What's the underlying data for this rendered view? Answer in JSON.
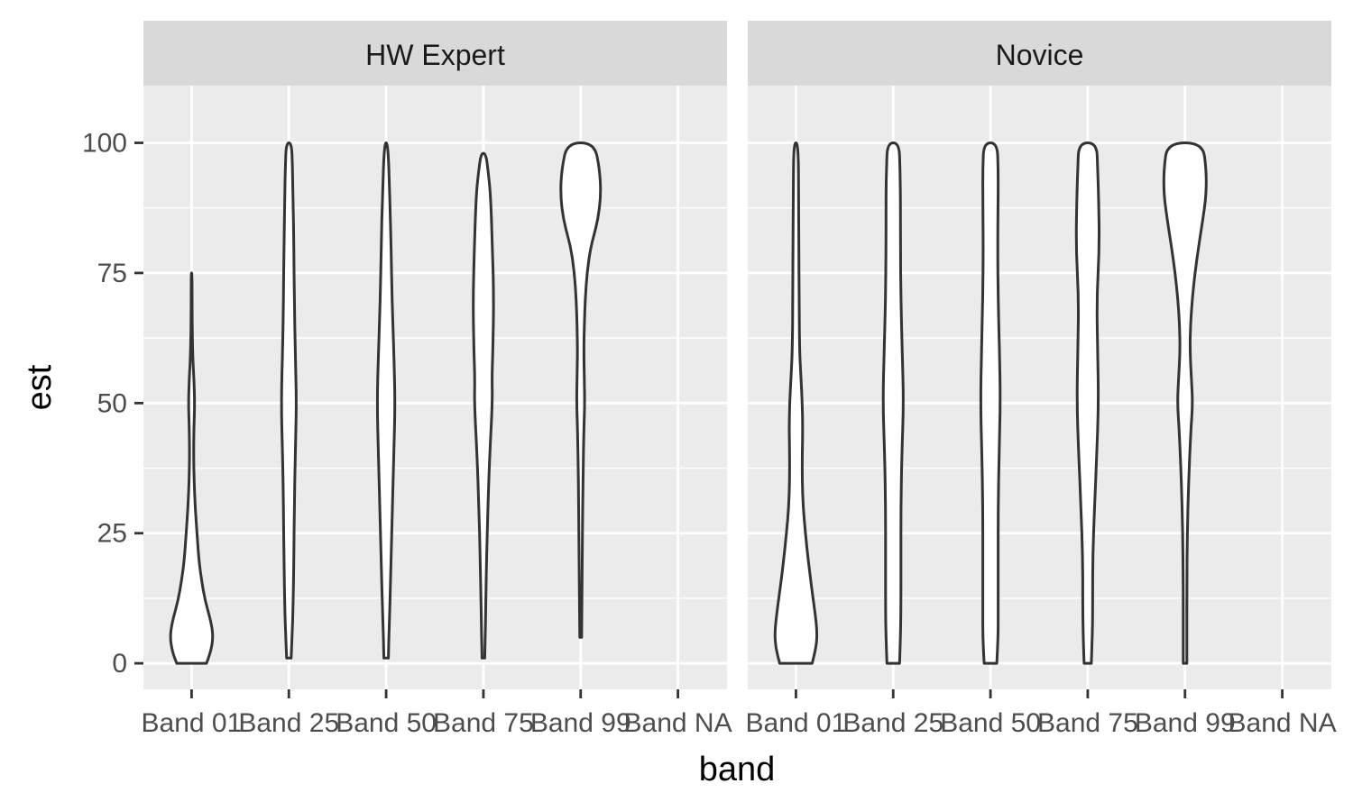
{
  "chart_data": {
    "type": "violin",
    "xlabel": "band",
    "ylabel": "est",
    "categories": [
      "Band 01",
      "Band 25",
      "Band 50",
      "Band 75",
      "Band 99",
      "Band NA"
    ],
    "ylim": [
      -5,
      111
    ],
    "yticks": [
      0,
      25,
      50,
      75,
      100
    ],
    "grid": true,
    "panels": [
      {
        "label": "HW Expert",
        "violins": [
          {
            "category": "Band 01",
            "min": 0,
            "max": 75,
            "profile": [
              [
                0,
                0.33
              ],
              [
                2,
                0.42
              ],
              [
                5,
                0.48
              ],
              [
                8,
                0.43
              ],
              [
                12,
                0.3
              ],
              [
                16,
                0.22
              ],
              [
                20,
                0.16
              ],
              [
                25,
                0.12
              ],
              [
                30,
                0.08
              ],
              [
                35,
                0.055
              ],
              [
                40,
                0.045
              ],
              [
                45,
                0.05
              ],
              [
                50,
                0.07
              ],
              [
                55,
                0.05
              ],
              [
                58,
                0.03
              ],
              [
                62,
                0.018
              ],
              [
                66,
                0.012
              ],
              [
                70,
                0.01
              ],
              [
                75,
                0.008
              ]
            ]
          },
          {
            "category": "Band 25",
            "min": 1,
            "max": 100,
            "profile": [
              [
                1,
                0.05
              ],
              [
                5,
                0.07
              ],
              [
                10,
                0.09
              ],
              [
                20,
                0.11
              ],
              [
                30,
                0.12
              ],
              [
                40,
                0.14
              ],
              [
                50,
                0.17
              ],
              [
                60,
                0.14
              ],
              [
                70,
                0.12
              ],
              [
                80,
                0.11
              ],
              [
                90,
                0.09
              ],
              [
                95,
                0.08
              ],
              [
                100,
                0.06
              ]
            ]
          },
          {
            "category": "Band 50",
            "min": 1,
            "max": 100,
            "profile": [
              [
                1,
                0.05
              ],
              [
                5,
                0.06
              ],
              [
                10,
                0.08
              ],
              [
                20,
                0.11
              ],
              [
                30,
                0.14
              ],
              [
                40,
                0.17
              ],
              [
                50,
                0.2
              ],
              [
                60,
                0.17
              ],
              [
                70,
                0.13
              ],
              [
                80,
                0.11
              ],
              [
                90,
                0.08
              ],
              [
                100,
                0.04
              ]
            ]
          },
          {
            "category": "Band 75",
            "min": 1,
            "max": 98,
            "profile": [
              [
                1,
                0.03
              ],
              [
                5,
                0.04
              ],
              [
                10,
                0.05
              ],
              [
                20,
                0.07
              ],
              [
                30,
                0.1
              ],
              [
                40,
                0.14
              ],
              [
                50,
                0.2
              ],
              [
                55,
                0.19
              ],
              [
                60,
                0.21
              ],
              [
                70,
                0.23
              ],
              [
                80,
                0.2
              ],
              [
                90,
                0.16
              ],
              [
                95,
                0.1
              ],
              [
                98,
                0.05
              ]
            ]
          },
          {
            "category": "Band 99",
            "min": 5,
            "max": 100,
            "profile": [
              [
                5,
                0.02
              ],
              [
                15,
                0.03
              ],
              [
                25,
                0.04
              ],
              [
                35,
                0.05
              ],
              [
                45,
                0.07
              ],
              [
                50,
                0.09
              ],
              [
                55,
                0.08
              ],
              [
                60,
                0.07
              ],
              [
                65,
                0.08
              ],
              [
                70,
                0.1
              ],
              [
                75,
                0.14
              ],
              [
                80,
                0.22
              ],
              [
                85,
                0.38
              ],
              [
                90,
                0.45
              ],
              [
                95,
                0.42
              ],
              [
                100,
                0.3
              ]
            ]
          }
        ]
      },
      {
        "label": "Novice",
        "violins": [
          {
            "category": "Band 01",
            "min": 0,
            "max": 100,
            "profile": [
              [
                0,
                0.36
              ],
              [
                3,
                0.45
              ],
              [
                6,
                0.47
              ],
              [
                10,
                0.42
              ],
              [
                15,
                0.34
              ],
              [
                20,
                0.27
              ],
              [
                25,
                0.21
              ],
              [
                30,
                0.16
              ],
              [
                35,
                0.14
              ],
              [
                40,
                0.14
              ],
              [
                45,
                0.15
              ],
              [
                50,
                0.14
              ],
              [
                55,
                0.11
              ],
              [
                60,
                0.08
              ],
              [
                70,
                0.07
              ],
              [
                80,
                0.065
              ],
              [
                90,
                0.06
              ],
              [
                100,
                0.05
              ]
            ]
          },
          {
            "category": "Band 25",
            "min": 0,
            "max": 100,
            "profile": [
              [
                0,
                0.14
              ],
              [
                5,
                0.16
              ],
              [
                10,
                0.17
              ],
              [
                20,
                0.17
              ],
              [
                30,
                0.17
              ],
              [
                40,
                0.19
              ],
              [
                50,
                0.23
              ],
              [
                60,
                0.2
              ],
              [
                70,
                0.17
              ],
              [
                80,
                0.16
              ],
              [
                90,
                0.16
              ],
              [
                95,
                0.15
              ],
              [
                100,
                0.13
              ]
            ]
          },
          {
            "category": "Band 50",
            "min": 0,
            "max": 100,
            "profile": [
              [
                0,
                0.14
              ],
              [
                5,
                0.17
              ],
              [
                10,
                0.17
              ],
              [
                20,
                0.17
              ],
              [
                30,
                0.17
              ],
              [
                40,
                0.19
              ],
              [
                50,
                0.22
              ],
              [
                60,
                0.2
              ],
              [
                70,
                0.17
              ],
              [
                80,
                0.16
              ],
              [
                90,
                0.17
              ],
              [
                95,
                0.17
              ],
              [
                100,
                0.15
              ]
            ]
          },
          {
            "category": "Band 75",
            "min": 0,
            "max": 100,
            "profile": [
              [
                0,
                0.08
              ],
              [
                5,
                0.1
              ],
              [
                10,
                0.11
              ],
              [
                20,
                0.11
              ],
              [
                30,
                0.15
              ],
              [
                40,
                0.2
              ],
              [
                50,
                0.24
              ],
              [
                60,
                0.22
              ],
              [
                70,
                0.2
              ],
              [
                80,
                0.26
              ],
              [
                90,
                0.24
              ],
              [
                95,
                0.22
              ],
              [
                100,
                0.2
              ]
            ]
          },
          {
            "category": "Band 99",
            "min": 0,
            "max": 100,
            "profile": [
              [
                0,
                0.04
              ],
              [
                5,
                0.04
              ],
              [
                15,
                0.04
              ],
              [
                25,
                0.05
              ],
              [
                35,
                0.08
              ],
              [
                45,
                0.13
              ],
              [
                50,
                0.17
              ],
              [
                55,
                0.14
              ],
              [
                60,
                0.11
              ],
              [
                65,
                0.12
              ],
              [
                70,
                0.16
              ],
              [
                75,
                0.22
              ],
              [
                80,
                0.3
              ],
              [
                85,
                0.39
              ],
              [
                90,
                0.47
              ],
              [
                95,
                0.47
              ],
              [
                100,
                0.39
              ]
            ]
          }
        ]
      }
    ]
  }
}
